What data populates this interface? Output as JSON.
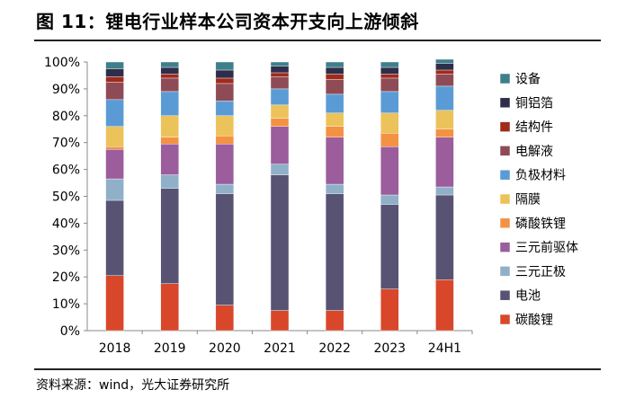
{
  "title": "图 11：锂电行业样本公司资本开支向上游倾斜",
  "source": "资料来源：wind，光大证券研究所",
  "chart_data": {
    "type": "stacked-bar",
    "categories": [
      "2018",
      "2019",
      "2020",
      "2021",
      "2022",
      "2023",
      "24H1"
    ],
    "ylim": [
      0,
      100
    ],
    "y_ticks": [
      "0%",
      "10%",
      "20%",
      "30%",
      "40%",
      "50%",
      "60%",
      "70%",
      "80%",
      "90%",
      "100%"
    ],
    "legend_position": "right",
    "series": [
      {
        "name": "碳酸锂",
        "color": "#d9472b",
        "values": [
          20.5,
          17.5,
          9.5,
          7.5,
          7.5,
          15.5,
          19
        ]
      },
      {
        "name": "电池",
        "color": "#585373",
        "values": [
          28,
          35.5,
          41.5,
          50.5,
          43.5,
          31.5,
          31.5
        ]
      },
      {
        "name": "三元正极",
        "color": "#8fb0c8",
        "values": [
          8,
          5,
          3.5,
          4,
          3.5,
          3.5,
          3
        ]
      },
      {
        "name": "三元前驱体",
        "color": "#9b5d9c",
        "values": [
          11,
          11.5,
          15,
          14,
          17.5,
          18,
          18.5
        ]
      },
      {
        "name": "磷酸铁锂",
        "color": "#f39243",
        "values": [
          1,
          2.5,
          3,
          3,
          4,
          5,
          3
        ]
      },
      {
        "name": "隔膜",
        "color": "#ecc25b",
        "values": [
          7.5,
          8,
          7.5,
          5,
          5,
          7.5,
          7
        ]
      },
      {
        "name": "负极材料",
        "color": "#5b9bd5",
        "values": [
          10,
          9,
          5.5,
          6,
          7,
          8,
          9
        ]
      },
      {
        "name": "电解液",
        "color": "#8e4b56",
        "values": [
          6.5,
          5,
          6.5,
          4.5,
          5.5,
          5,
          4.5
        ]
      },
      {
        "name": "结构件",
        "color": "#a12a1c",
        "values": [
          2,
          1.5,
          2,
          1.5,
          2,
          1.5,
          1.5
        ]
      },
      {
        "name": "铜铝箔",
        "color": "#2e2e4a",
        "values": [
          3,
          2.5,
          3,
          2.5,
          2.5,
          2.5,
          2.5
        ]
      },
      {
        "name": "设备",
        "color": "#3f7f8c",
        "values": [
          2.5,
          2,
          3,
          1.5,
          2,
          2,
          1.5
        ]
      }
    ]
  }
}
